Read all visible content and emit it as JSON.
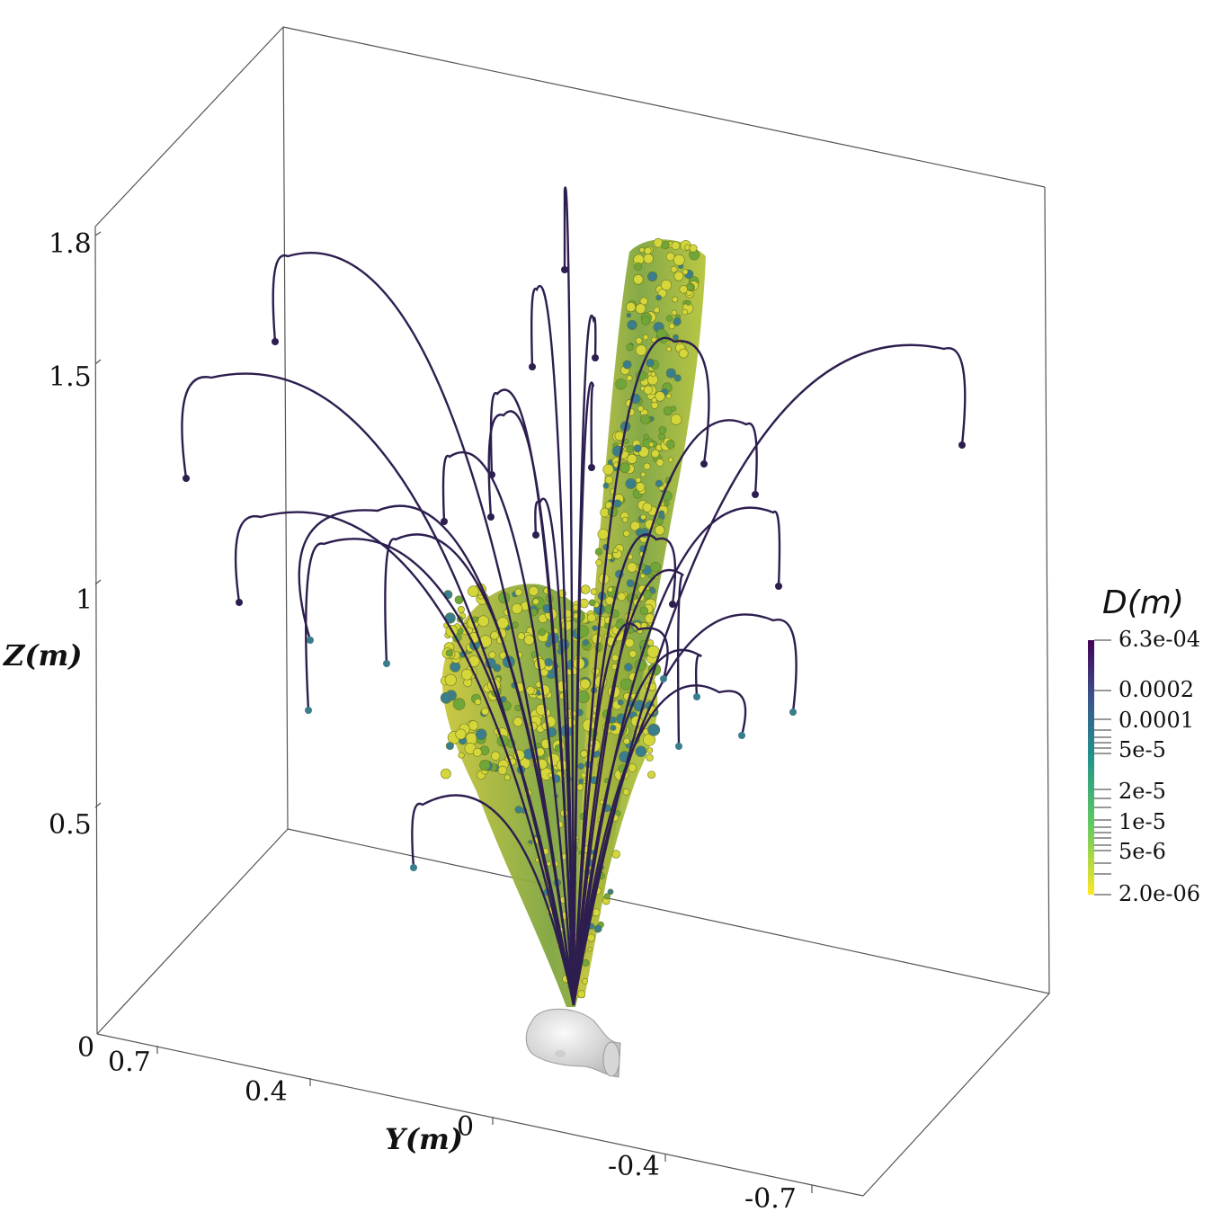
{
  "axes": {
    "z": {
      "title": "Z(m)",
      "ticks": [
        "1.8",
        "1.5",
        "1",
        "0.5",
        "0"
      ]
    },
    "y": {
      "title": "Y(m)",
      "ticks": [
        "0.7",
        "0.4",
        "0",
        "-0.4",
        "-0.7"
      ]
    }
  },
  "colorbar": {
    "title": "D(m)",
    "labels": [
      "6.3e-04",
      "0.0002",
      "0.0001",
      "5e-5",
      "2e-5",
      "1e-5",
      "5e-6",
      "2.0e-06"
    ],
    "colors": [
      "#440154",
      "#3b528b",
      "#21918c",
      "#5ec962",
      "#fde725"
    ]
  },
  "colors": {
    "droplet_dark": "#2d1e4f",
    "droplet_teal": "#3a7d8c",
    "droplet_green": "#6fa63a",
    "droplet_yellow": "#d5d63a",
    "head": "#e8e8e8"
  },
  "icons": {
    "head": "human-head-model-icon"
  }
}
